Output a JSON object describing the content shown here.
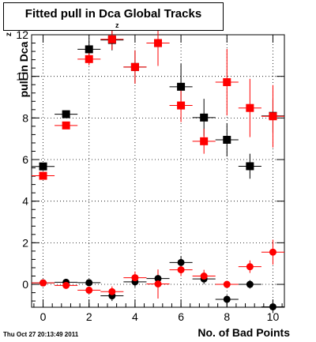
{
  "title_main": "Fitted pull in Dca Global Tracks",
  "title_sub": "z",
  "timestamp": "Thu Oct 27 20:13:49 2011",
  "chart_data": {
    "type": "scatter",
    "title": "Fitted pull in Dca Global Tracks",
    "xlabel": "No. of Bad Points",
    "ylabel": "pull in Dca",
    "ylabel_sub": "z",
    "xlim": [
      -0.5,
      10.5
    ],
    "ylim": [
      -1.1,
      12.0
    ],
    "x_ticks": [
      0,
      2,
      4,
      6,
      8,
      10
    ],
    "y_ticks": [
      0,
      2,
      4,
      6,
      8,
      10,
      12
    ],
    "grid": true,
    "series": [
      {
        "marker": "square",
        "color": "#000000",
        "x": [
          0,
          1,
          2,
          3,
          4,
          5,
          6,
          7,
          8,
          9,
          10
        ],
        "y": [
          5.67,
          8.18,
          11.3,
          11.75,
          10.45,
          11.6,
          9.5,
          8.02,
          6.95,
          5.68,
          8.1
        ],
        "yerr": [
          0.12,
          0.1,
          0.35,
          0.5,
          0.8,
          1.1,
          1.1,
          0.9,
          0.8,
          0.6,
          0.8
        ]
      },
      {
        "marker": "square",
        "color": "#ff0000",
        "x": [
          0,
          1,
          2,
          3,
          4,
          5,
          6,
          7,
          8,
          9,
          10
        ],
        "y": [
          5.22,
          7.64,
          10.83,
          11.78,
          10.45,
          11.6,
          8.6,
          6.88,
          9.72,
          8.48,
          8.08
        ],
        "yerr": [
          0.12,
          0.1,
          0.3,
          0.5,
          0.8,
          1.1,
          0.8,
          0.6,
          1.6,
          1.4,
          1.5
        ]
      },
      {
        "marker": "circle",
        "color": "#000000",
        "x": [
          0,
          1,
          2,
          3,
          4,
          5,
          6,
          7,
          8,
          9,
          10
        ],
        "y": [
          0.07,
          0.1,
          0.08,
          -0.55,
          0.12,
          0.28,
          1.05,
          0.26,
          -0.72,
          0.0,
          -1.08
        ],
        "yerr": [
          0.05,
          0.05,
          0.1,
          0.25,
          0.25,
          0.3,
          0.3,
          0.25,
          0.2,
          0.2,
          0.3
        ]
      },
      {
        "marker": "circle",
        "color": "#ff0000",
        "x": [
          0,
          1,
          2,
          3,
          4,
          5,
          6,
          7,
          8,
          9,
          10
        ],
        "y": [
          0.07,
          -0.05,
          -0.28,
          -0.35,
          0.32,
          0.02,
          0.7,
          0.4,
          0.0,
          0.85,
          1.55
        ],
        "yerr": [
          0.05,
          0.05,
          0.1,
          0.25,
          0.3,
          0.7,
          0.3,
          0.3,
          0.0,
          0.3,
          0.6
        ]
      }
    ]
  }
}
